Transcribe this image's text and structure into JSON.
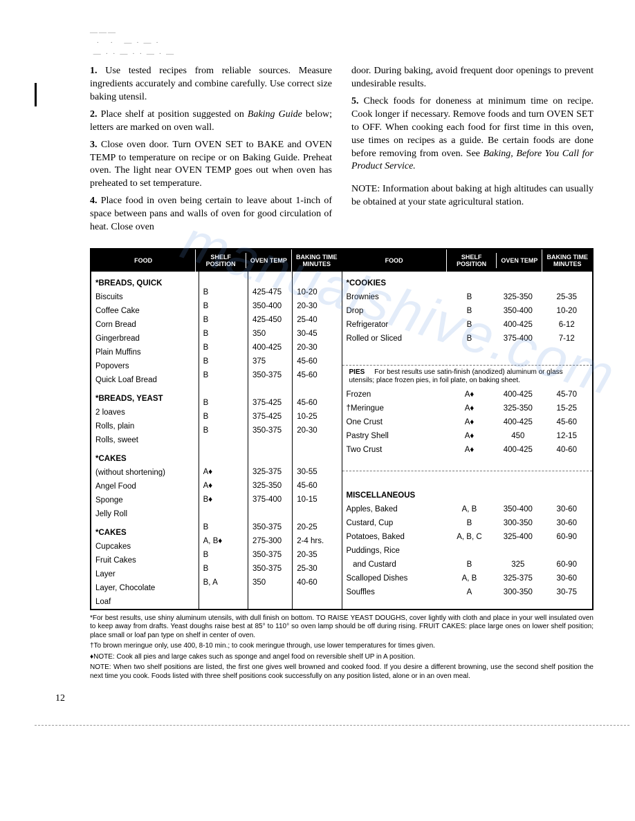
{
  "instructions": {
    "p1": "Use tested recipes from reliable sources. Measure ingredients accurately and combine carefully. Use correct size baking utensil.",
    "p2a": "Place shelf at position suggested on ",
    "p2b": "Baking Guide",
    "p2c": " below; letters are marked on oven wall.",
    "p3": "Close oven door. Turn OVEN SET to BAKE and OVEN TEMP to temperature on recipe or on Baking Guide. Preheat oven. The light near OVEN TEMP goes out when oven has preheated to set temperature.",
    "p4": "Place food in oven being certain to leave about 1-inch of space between pans and walls of oven for good circulation of heat. Close oven",
    "p4b": "door. During baking, avoid frequent door openings to prevent undesirable results.",
    "p5a": "Check foods for doneness at minimum time on recipe. Cook longer if necessary. Remove foods and turn OVEN SET to OFF. When cooking each food for first time in this oven, use times on recipes as a guide. Be certain foods are done before removing from oven. See ",
    "p5b": "Baking, Before You Call for Product Service.",
    "note": "NOTE: Information about baking at high altitudes can usually be obtained at your state agricultural station."
  },
  "headers": {
    "food": "FOOD",
    "shelf": "SHELF POSITION",
    "temp": "OVEN TEMP",
    "time": "BAKING TIME MINUTES"
  },
  "left": [
    {
      "sec": true,
      "food": "*BREADS, QUICK"
    },
    {
      "food": "Biscuits",
      "shelf": "B",
      "temp": "425-475",
      "time": "10-20"
    },
    {
      "food": "Coffee Cake",
      "shelf": "B",
      "temp": "350-400",
      "time": "20-30"
    },
    {
      "food": "Corn Bread",
      "shelf": "B",
      "temp": "425-450",
      "time": "25-40"
    },
    {
      "food": "Gingerbread",
      "shelf": "B",
      "temp": "350",
      "time": "30-45"
    },
    {
      "food": "Plain Muffins",
      "shelf": "B",
      "temp": "400-425",
      "time": "20-30"
    },
    {
      "food": "Popovers",
      "shelf": "B",
      "temp": "375",
      "time": "45-60"
    },
    {
      "food": "Quick Loaf Bread",
      "shelf": "B",
      "temp": "350-375",
      "time": "45-60"
    },
    {
      "sec": true,
      "food": "*BREADS, YEAST"
    },
    {
      "food": "2 loaves",
      "shelf": "B",
      "temp": "375-425",
      "time": "45-60"
    },
    {
      "food": "Rolls, plain",
      "shelf": "B",
      "temp": "375-425",
      "time": "10-25"
    },
    {
      "food": "Rolls, sweet",
      "shelf": "B",
      "temp": "350-375",
      "time": "20-30"
    },
    {
      "sec": true,
      "food": "*CAKES"
    },
    {
      "food": "(without shortening)"
    },
    {
      "food": "Angel Food",
      "shelf": "A♦",
      "temp": "325-375",
      "time": "30-55"
    },
    {
      "food": "Sponge",
      "shelf": "A♦",
      "temp": "325-350",
      "time": "45-60"
    },
    {
      "food": "Jelly Roll",
      "shelf": "B♦",
      "temp": "375-400",
      "time": "10-15"
    },
    {
      "sec": true,
      "food": "*CAKES"
    },
    {
      "food": "Cupcakes",
      "shelf": "B",
      "temp": "350-375",
      "time": "20-25"
    },
    {
      "food": "Fruit Cakes",
      "shelf": "A, B♦",
      "temp": "275-300",
      "time": "2-4 hrs."
    },
    {
      "food": "Layer",
      "shelf": "B",
      "temp": "350-375",
      "time": "20-35"
    },
    {
      "food": "Layer, Chocolate",
      "shelf": "B",
      "temp": "350-375",
      "time": "25-30"
    },
    {
      "food": "Loaf",
      "shelf": "B, A",
      "temp": "350",
      "time": "40-60"
    }
  ],
  "right_top": [
    {
      "sec": true,
      "food": "*COOKIES"
    },
    {
      "food": "Brownies",
      "shelf": "B",
      "temp": "325-350",
      "time": "25-35"
    },
    {
      "food": "Drop",
      "shelf": "B",
      "temp": "350-400",
      "time": "10-20"
    },
    {
      "food": "Refrigerator",
      "shelf": "B",
      "temp": "400-425",
      "time": "6-12"
    },
    {
      "food": "Rolled or Sliced",
      "shelf": "B",
      "temp": "375-400",
      "time": "7-12"
    }
  ],
  "pies_note": {
    "title": "PIES",
    "text": "For best results use satin-finish (anodized) aluminum or glass utensils; place frozen pies, in foil plate, on baking sheet."
  },
  "right_pies": [
    {
      "food": "Frozen",
      "shelf": "A♦",
      "temp": "400-425",
      "time": "45-70"
    },
    {
      "food": "†Meringue",
      "shelf": "A♦",
      "temp": "325-350",
      "time": "15-25"
    },
    {
      "food": "One Crust",
      "shelf": "A♦",
      "temp": "400-425",
      "time": "45-60"
    },
    {
      "food": "Pastry Shell",
      "shelf": "A♦",
      "temp": "450",
      "time": "12-15"
    },
    {
      "food": "Two Crust",
      "shelf": "A♦",
      "temp": "400-425",
      "time": "40-60"
    }
  ],
  "right_misc": [
    {
      "sec": true,
      "food": "MISCELLANEOUS"
    },
    {
      "food": "Apples, Baked",
      "shelf": "A, B",
      "temp": "350-400",
      "time": "30-60"
    },
    {
      "food": "Custard, Cup",
      "shelf": "B",
      "temp": "300-350",
      "time": "30-60"
    },
    {
      "food": "Potatoes, Baked",
      "shelf": "A, B, C",
      "temp": "325-400",
      "time": "60-90"
    },
    {
      "food": "Puddings, Rice"
    },
    {
      "food": "   and Custard",
      "shelf": "B",
      "temp": "325",
      "time": "60-90"
    },
    {
      "food": "Scalloped Dishes",
      "shelf": "A, B",
      "temp": "325-375",
      "time": "30-60"
    },
    {
      "food": "Souffles",
      "shelf": "A",
      "temp": "300-350",
      "time": "30-75"
    }
  ],
  "footnotes": {
    "f1": "*For best results, use shiny aluminum utensils, with dull finish on bottom. TO RAISE YEAST DOUGHS, cover lightly with cloth and place in your well insulated oven to keep away from drafts. Yeast doughs raise best at 85° to 110° so oven lamp should be off during rising. FRUIT CAKES: place large ones on lower shelf position; place small or loaf pan type on shelf in center of oven.",
    "f2": "†To brown meringue only, use 400, 8-10 min.; to cook meringue through, use lower temperatures for times given.",
    "f3": "♦NOTE: Cook all pies and large cakes such as sponge and angel food on reversible shelf UP in A position.",
    "f4": "NOTE: When two shelf positions are listed, the first one gives well browned and cooked food. If you desire a different browning, use the second shelf position the next time you cook. Foods listed with three shelf positions cook successfully on any position listed, alone or in an oven meal."
  },
  "page_number": "12"
}
